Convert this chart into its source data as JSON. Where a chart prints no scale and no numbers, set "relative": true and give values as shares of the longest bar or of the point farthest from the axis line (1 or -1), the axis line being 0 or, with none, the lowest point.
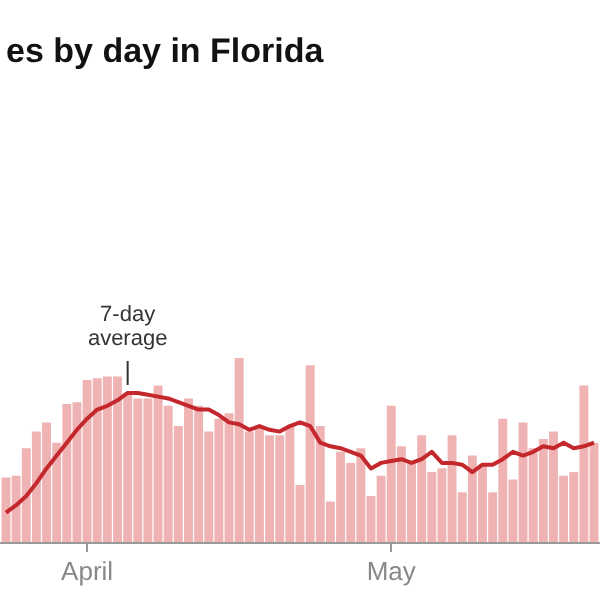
{
  "chart_data": {
    "type": "bar",
    "title": "es by day in Florida",
    "relative": true,
    "categories": [
      null,
      null,
      null,
      null,
      null,
      null,
      null,
      null,
      "April",
      null,
      null,
      null,
      null,
      null,
      null,
      null,
      null,
      null,
      null,
      null,
      null,
      null,
      null,
      null,
      null,
      null,
      null,
      null,
      null,
      null,
      null,
      null,
      null,
      null,
      null,
      null,
      null,
      null,
      "May",
      null,
      null,
      null,
      null,
      null,
      null,
      null,
      null,
      null,
      null,
      null,
      null,
      null,
      null,
      null,
      null,
      null,
      null,
      null,
      null
    ],
    "series": [
      {
        "color": "#efb3b3",
        "values": [
          0.35,
          0.36,
          0.51,
          0.6,
          0.65,
          0.54,
          0.75,
          0.76,
          0.88,
          0.89,
          0.9,
          0.9,
          0.81,
          0.78,
          0.78,
          0.85,
          0.74,
          0.63,
          0.78,
          0.74,
          0.6,
          0.67,
          0.7,
          1,
          0.6,
          0.63,
          0.58,
          0.58,
          0.63,
          0.31,
          0.96,
          0.63,
          0.22,
          0.49,
          0.43,
          0.51,
          0.25,
          0.36,
          0.74,
          0.52,
          0.43,
          0.58,
          0.38,
          0.4,
          0.58,
          0.27,
          0.47,
          0.42,
          0.27,
          0.67,
          0.34,
          0.65,
          0.51,
          0.56,
          0.6,
          0.36,
          0.38,
          0.85,
          0.54
        ]
      },
      {
        "type": "line",
        "color": "#c4272c",
        "values": [
          0.16,
          0.2,
          0.25,
          0.32,
          0.4,
          0.47,
          0.54,
          0.61,
          0.67,
          0.72,
          0.74,
          0.77,
          0.81,
          0.81,
          0.8,
          0.79,
          0.78,
          0.76,
          0.74,
          0.72,
          0.72,
          0.69,
          0.65,
          0.64,
          0.61,
          0.63,
          0.61,
          0.6,
          0.63,
          0.65,
          0.63,
          0.54,
          0.52,
          0.51,
          0.49,
          0.47,
          0.4,
          0.43,
          0.44,
          0.45,
          0.43,
          0.45,
          0.49,
          0.43,
          0.43,
          0.42,
          0.38,
          0.42,
          0.42,
          0.45,
          0.49,
          0.47,
          0.49,
          0.52,
          0.51,
          0.54,
          0.51,
          0.52,
          0.54
        ]
      }
    ],
    "annotations": [
      "7-day average"
    ]
  }
}
